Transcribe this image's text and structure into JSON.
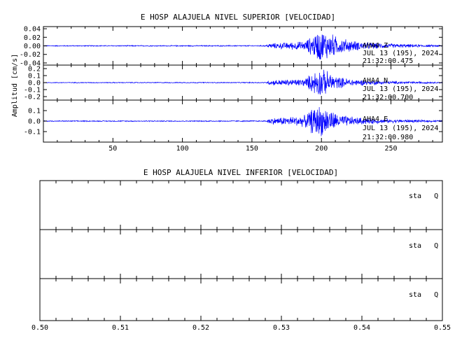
{
  "chart_data": [
    {
      "type": "line",
      "title": "E HOSP ALAJUELA NIVEL SUPERIOR [VELOCIDAD]",
      "ylabel": "Amplitud [cm/s]",
      "xlabel": "",
      "xlim": [
        0,
        287
      ],
      "xticks": [
        50,
        100,
        150,
        200,
        250
      ],
      "grid": false,
      "colors": {
        "trace": "#0000ff",
        "axes": "#000000"
      },
      "panels": [
        {
          "id": "Z",
          "ylim": [
            -0.045,
            0.045
          ],
          "yticks": [
            "0.04",
            "0.02",
            "0.00",
            "-0.02",
            "-0.04"
          ],
          "labels": [
            "AHA4   Z",
            "JUL 13 (195), 2024",
            "21:32:00.475"
          ],
          "envelope": [
            {
              "x": 0,
              "amp": 0.0012
            },
            {
              "x": 160,
              "amp": 0.0015
            },
            {
              "x": 162,
              "amp": 0.006
            },
            {
              "x": 175,
              "amp": 0.009
            },
            {
              "x": 188,
              "amp": 0.012
            },
            {
              "x": 193,
              "amp": 0.025
            },
            {
              "x": 198,
              "amp": 0.041
            },
            {
              "x": 205,
              "amp": 0.036
            },
            {
              "x": 212,
              "amp": 0.022
            },
            {
              "x": 225,
              "amp": 0.012
            },
            {
              "x": 245,
              "amp": 0.006
            },
            {
              "x": 287,
              "amp": 0.002
            }
          ]
        },
        {
          "id": "N",
          "ylim": [
            -0.25,
            0.25
          ],
          "yticks": [
            "0.2",
            "0.1",
            "0.0",
            "-0.1",
            "-0.2"
          ],
          "labels": [
            "AHA4   N",
            "JUL 13 (195), 2024",
            "21:32:00.700"
          ],
          "envelope": [
            {
              "x": 0,
              "amp": 0.006
            },
            {
              "x": 160,
              "amp": 0.008
            },
            {
              "x": 163,
              "amp": 0.04
            },
            {
              "x": 175,
              "amp": 0.05
            },
            {
              "x": 188,
              "amp": 0.06
            },
            {
              "x": 193,
              "amp": 0.15
            },
            {
              "x": 198,
              "amp": 0.23
            },
            {
              "x": 205,
              "amp": 0.17
            },
            {
              "x": 212,
              "amp": 0.09
            },
            {
              "x": 225,
              "amp": 0.05
            },
            {
              "x": 245,
              "amp": 0.025
            },
            {
              "x": 287,
              "amp": 0.01
            }
          ]
        },
        {
          "id": "E",
          "ylim": [
            -0.2,
            0.2
          ],
          "yticks": [
            "0.1",
            "0.0",
            "-0.1"
          ],
          "labels": [
            "AHA4   E",
            "JUL 13 (195), 2024",
            "21:32:00.980"
          ],
          "envelope": [
            {
              "x": 0,
              "amp": 0.005
            },
            {
              "x": 160,
              "amp": 0.006
            },
            {
              "x": 162,
              "amp": 0.03
            },
            {
              "x": 175,
              "amp": 0.045
            },
            {
              "x": 188,
              "amp": 0.06
            },
            {
              "x": 193,
              "amp": 0.13
            },
            {
              "x": 198,
              "amp": 0.17
            },
            {
              "x": 205,
              "amp": 0.13
            },
            {
              "x": 212,
              "amp": 0.07
            },
            {
              "x": 225,
              "amp": 0.04
            },
            {
              "x": 245,
              "amp": 0.02
            },
            {
              "x": 287,
              "amp": 0.008
            }
          ]
        }
      ]
    },
    {
      "type": "line",
      "title": "E HOSP ALAJUELA NIVEL INFERIOR [VELOCIDAD]",
      "xlabel": "",
      "xlim": [
        0.5,
        0.55
      ],
      "xticks": [
        "0.50",
        "0.51",
        "0.52",
        "0.53",
        "0.54",
        "0.55"
      ],
      "grid": false,
      "panels": [
        {
          "id": "1",
          "label": "sta   Q"
        },
        {
          "id": "2",
          "label": "sta   Q"
        },
        {
          "id": "3",
          "label": "sta   Q"
        }
      ]
    }
  ]
}
